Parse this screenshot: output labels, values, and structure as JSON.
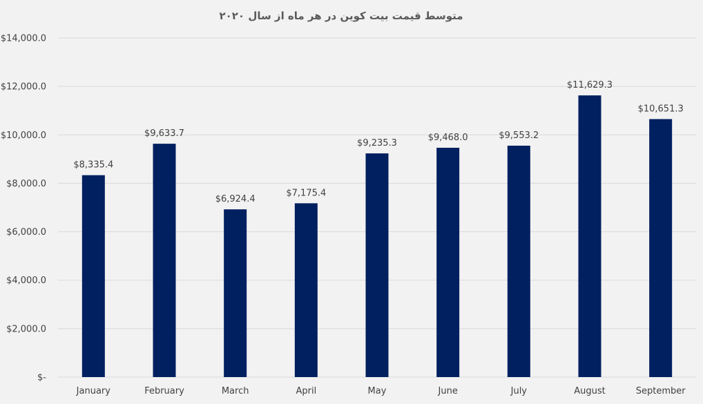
{
  "chart_data": {
    "type": "bar",
    "title": "متوسط قیمت بیت کوین در هر ماه از سال ۲۰۲۰",
    "xlabel": "",
    "ylabel": "",
    "categories": [
      "January",
      "February",
      "March",
      "April",
      "May",
      "June",
      "July",
      "August",
      "September"
    ],
    "values": [
      8335.4,
      9633.7,
      6924.4,
      7175.4,
      9235.3,
      9468.0,
      9553.2,
      11629.3,
      10651.3
    ],
    "data_labels": [
      "$8,335.4",
      "$9,633.7",
      "$6,924.4",
      "$7,175.4",
      "$9,235.3",
      "$9,468.0",
      "$9,553.2",
      "$11,629.3",
      "$10,651.3"
    ],
    "ylim": [
      0,
      14000
    ],
    "yticks": [
      0,
      2000,
      4000,
      6000,
      8000,
      10000,
      12000,
      14000
    ],
    "ytick_labels": [
      "$-",
      "$2,000.0",
      "$4,000.0",
      "$6,000.0",
      "$8,000.0",
      "$10,000.0",
      "$12,000.0",
      "$14,000.0"
    ],
    "grid": true,
    "legend": "none",
    "colors": {
      "bar": "#002060",
      "background": "#f2f2f2",
      "grid": "#d9d9d9",
      "text": "#404040",
      "title": "#595959"
    }
  }
}
